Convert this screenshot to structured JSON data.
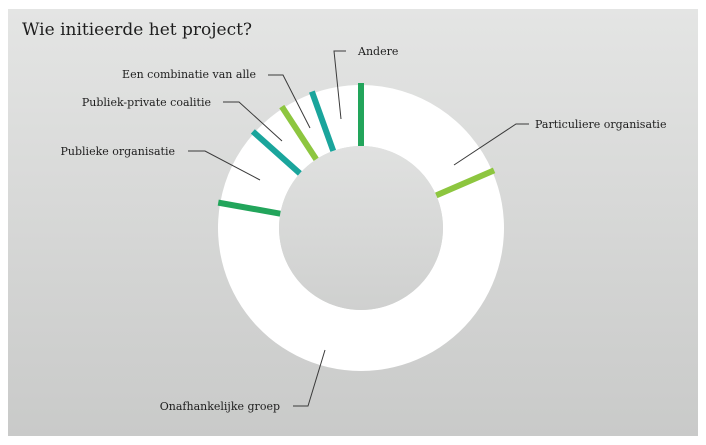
{
  "chart_data": {
    "type": "pie",
    "title": "Wie initieerde het project?",
    "style": "donut",
    "categories": [
      "Particuliere organisatie",
      "Onafhankelijke groep",
      "Publieke organisatie",
      "Publiek-private coalitie",
      "Een combinatie van alle",
      "Andere"
    ],
    "values": [
      18.5,
      59.3,
      8.8,
      4.2,
      3.7,
      5.5
    ],
    "unit": "%",
    "colors": {
      "slice_fill": "#ffffff",
      "separators": [
        "#8dc63f",
        "#22a55b",
        "#1aa59c",
        "#8dc63f",
        "#1aa59c",
        "#22a55b"
      ]
    }
  }
}
